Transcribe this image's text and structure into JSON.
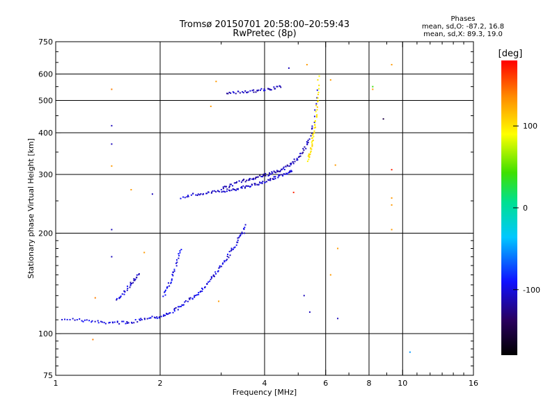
{
  "title": {
    "line1": "Tromsø 20150701 20:58:00–20:59:43",
    "line2": "RwPretec (8p)"
  },
  "phase_info": {
    "heading": "Phases",
    "line_o": "mean, sd,O:  -87.2, 16.8",
    "line_x": "mean, sd,X:  89.3, 19.0"
  },
  "colorbar": {
    "label": "[deg]",
    "ticks": [
      {
        "value": 100,
        "label": "100"
      },
      {
        "value": 0,
        "label": "0"
      },
      {
        "value": -100,
        "label": "-100"
      }
    ],
    "range": [
      -180,
      180
    ]
  },
  "chart_data": {
    "type": "scatter",
    "xlabel": "Frequency [MHz]",
    "ylabel": "Stationary phase Virtual Height [km]",
    "xscale": "log",
    "yscale": "log",
    "xlim": [
      1,
      16
    ],
    "ylim": [
      75,
      750
    ],
    "xticks": [
      {
        "value": 1,
        "label": "1"
      },
      {
        "value": 2,
        "label": "2"
      },
      {
        "value": 4,
        "label": "4"
      },
      {
        "value": 6,
        "label": "6"
      },
      {
        "value": 8,
        "label": "8"
      },
      {
        "value": 10,
        "label": "10"
      },
      {
        "value": 16,
        "label": "16"
      }
    ],
    "yticks": [
      {
        "value": 75,
        "label": "75"
      },
      {
        "value": 100,
        "label": "100"
      },
      {
        "value": 200,
        "label": "200"
      },
      {
        "value": 300,
        "label": "300"
      },
      {
        "value": 400,
        "label": "400"
      },
      {
        "value": 500,
        "label": "500"
      },
      {
        "value": 600,
        "label": "600"
      },
      {
        "value": 750,
        "label": "750"
      }
    ],
    "grid_x": [
      2,
      4,
      6,
      8,
      10
    ],
    "grid_y": [
      100,
      200,
      300,
      400,
      500,
      600
    ],
    "color_scale": "rainbow (phase, deg)",
    "traces": [
      {
        "x": [
          1.05,
          1.15,
          1.25,
          1.35,
          1.45,
          1.55,
          1.65,
          1.75,
          1.85,
          1.95,
          2.05,
          2.15,
          2.25,
          2.35,
          2.45,
          2.55,
          2.65,
          2.75,
          2.85,
          2.95,
          3.05,
          3.15,
          3.25,
          3.35,
          3.45,
          3.55
        ],
        "y": [
          111,
          110,
          109,
          108,
          108,
          108,
          108,
          110,
          112,
          112,
          113,
          116,
          119,
          123,
          127,
          131,
          136,
          142,
          149,
          156,
          164,
          172,
          180,
          190,
          201,
          214
        ],
        "phase": -100
      },
      {
        "x": [
          2.3,
          2.45,
          2.6,
          2.75,
          2.9,
          3.05,
          3.2,
          3.35,
          3.5,
          3.65,
          3.8,
          3.95,
          4.1,
          4.25,
          4.4,
          4.55,
          4.7,
          4.85
        ],
        "y": [
          256,
          260,
          262,
          264,
          266,
          268,
          270,
          272,
          275,
          278,
          281,
          284,
          288,
          292,
          296,
          300,
          305,
          310
        ],
        "phase": -105
      },
      {
        "x": [
          3.0,
          3.15,
          3.3,
          3.45,
          3.6,
          3.75,
          3.9,
          4.05,
          4.2,
          4.35,
          4.5,
          4.65,
          4.8,
          4.95,
          5.1,
          5.25,
          5.4,
          5.55,
          5.7
        ],
        "y": [
          272,
          276,
          282,
          286,
          290,
          293,
          296,
          299,
          302,
          306,
          311,
          317,
          324,
          334,
          346,
          362,
          386,
          430,
          560
        ],
        "phase": -110
      },
      {
        "x": [
          5.35,
          5.4,
          5.45,
          5.5,
          5.55,
          5.6,
          5.65,
          5.7,
          5.75
        ],
        "y": [
          330,
          345,
          360,
          380,
          400,
          430,
          470,
          520,
          600
        ],
        "phase": 100
      },
      {
        "x": [
          3.1,
          3.3,
          3.5,
          3.7,
          3.9,
          4.1,
          4.3,
          4.5
        ],
        "y": [
          525,
          528,
          530,
          533,
          536,
          540,
          545,
          552
        ],
        "phase": -110
      },
      {
        "x": [
          1.5,
          1.55,
          1.6,
          1.65,
          1.7,
          1.75
        ],
        "y": [
          126,
          130,
          136,
          141,
          146,
          151
        ],
        "phase": -105
      },
      {
        "x": [
          2.05,
          2.1,
          2.15,
          2.2,
          2.25,
          2.3
        ],
        "y": [
          130,
          137,
          145,
          155,
          168,
          180
        ],
        "phase": -95
      }
    ],
    "points": [
      {
        "x": 1.3,
        "y": 128,
        "phase": 140
      },
      {
        "x": 1.28,
        "y": 96,
        "phase": 140
      },
      {
        "x": 1.45,
        "y": 540,
        "phase": 140
      },
      {
        "x": 1.45,
        "y": 420,
        "phase": -110
      },
      {
        "x": 1.45,
        "y": 370,
        "phase": -110
      },
      {
        "x": 1.45,
        "y": 318,
        "phase": 130
      },
      {
        "x": 1.45,
        "y": 205,
        "phase": -110
      },
      {
        "x": 1.45,
        "y": 170,
        "phase": -110
      },
      {
        "x": 1.65,
        "y": 270,
        "phase": 130
      },
      {
        "x": 1.9,
        "y": 262,
        "phase": -110
      },
      {
        "x": 1.8,
        "y": 175,
        "phase": 130
      },
      {
        "x": 2.8,
        "y": 480,
        "phase": 130
      },
      {
        "x": 2.9,
        "y": 570,
        "phase": 130
      },
      {
        "x": 2.95,
        "y": 125,
        "phase": 130
      },
      {
        "x": 3.5,
        "y": 200,
        "phase": -110
      },
      {
        "x": 4.7,
        "y": 625,
        "phase": -110
      },
      {
        "x": 5.3,
        "y": 640,
        "phase": 130
      },
      {
        "x": 4.85,
        "y": 265,
        "phase": 170
      },
      {
        "x": 5.2,
        "y": 130,
        "phase": -110
      },
      {
        "x": 5.4,
        "y": 116,
        "phase": -110
      },
      {
        "x": 6.2,
        "y": 576,
        "phase": 130
      },
      {
        "x": 6.2,
        "y": 150,
        "phase": 130
      },
      {
        "x": 6.4,
        "y": 320,
        "phase": 130
      },
      {
        "x": 6.5,
        "y": 180,
        "phase": 130
      },
      {
        "x": 6.5,
        "y": 111,
        "phase": -110
      },
      {
        "x": 8.2,
        "y": 550,
        "phase": 40
      },
      {
        "x": 8.2,
        "y": 540,
        "phase": 130
      },
      {
        "x": 8.8,
        "y": 440,
        "phase": -150
      },
      {
        "x": 9.3,
        "y": 640,
        "phase": 130
      },
      {
        "x": 9.3,
        "y": 310,
        "phase": 170
      },
      {
        "x": 9.3,
        "y": 255,
        "phase": 130
      },
      {
        "x": 9.3,
        "y": 243,
        "phase": 130
      },
      {
        "x": 9.3,
        "y": 205,
        "phase": 130
      },
      {
        "x": 10.5,
        "y": 88,
        "phase": -50
      }
    ]
  }
}
